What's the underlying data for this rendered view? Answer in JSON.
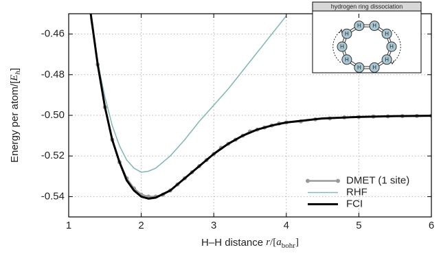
{
  "chart_data": {
    "type": "line",
    "x_label": [
      "H–H distance ",
      "r",
      "/[",
      "a",
      "bohr",
      "]"
    ],
    "y_label": [
      "Energy per atom/[",
      "E",
      "h",
      "]"
    ],
    "xlim": [
      1,
      6
    ],
    "xticks": [
      1,
      2,
      3,
      4,
      5,
      6
    ],
    "ylim": [
      -0.55,
      -0.45
    ],
    "yticks": [
      -0.54,
      -0.52,
      {
        "value": -0.5,
        "label": "-0.50"
      },
      -0.48,
      -0.46
    ],
    "grid": true,
    "legend": "lower right",
    "series": [
      {
        "name": "DMET (1 site)",
        "color": "#9a9a9a",
        "markers": true,
        "x": [
          1.3,
          1.4,
          1.5,
          1.6,
          1.7,
          1.8,
          1.9,
          2.0,
          2.1,
          2.2,
          2.3,
          2.4,
          2.5,
          2.6,
          2.7,
          2.8,
          2.9,
          3.0,
          3.1,
          3.2,
          3.3,
          3.4,
          3.5,
          3.6,
          3.7,
          3.8,
          3.9,
          4.0,
          4.2,
          4.4,
          4.6,
          4.8,
          5.0,
          5.2,
          5.4,
          5.6,
          5.8,
          6.0
        ],
        "values": [
          -0.449,
          -0.475,
          -0.496,
          -0.512,
          -0.523,
          -0.531,
          -0.536,
          -0.539,
          -0.54,
          -0.54,
          -0.539,
          -0.537,
          -0.534,
          -0.531,
          -0.528,
          -0.525,
          -0.522,
          -0.519,
          -0.516,
          -0.514,
          -0.512,
          -0.51,
          -0.508,
          -0.507,
          -0.506,
          -0.505,
          -0.504,
          -0.5035,
          -0.503,
          -0.502,
          -0.5015,
          -0.501,
          -0.5008,
          -0.5006,
          -0.5005,
          -0.5004,
          -0.5003,
          -0.5002
        ]
      },
      {
        "name": "RHF",
        "color": "#86b8b8",
        "markers": false,
        "x": [
          1.3,
          1.4,
          1.5,
          1.6,
          1.7,
          1.8,
          1.9,
          2.0,
          2.1,
          2.2,
          2.4,
          2.6,
          2.8,
          3.0,
          3.2,
          3.4,
          3.6,
          3.8,
          4.0
        ],
        "values": [
          -0.452,
          -0.474,
          -0.491,
          -0.505,
          -0.515,
          -0.522,
          -0.526,
          -0.528,
          -0.5275,
          -0.526,
          -0.52,
          -0.512,
          -0.503,
          -0.495,
          -0.487,
          -0.478,
          -0.469,
          -0.46,
          -0.451
        ]
      },
      {
        "name": "FCI",
        "color": "#000000",
        "markers": false,
        "x": [
          1.3,
          1.4,
          1.5,
          1.6,
          1.7,
          1.8,
          1.9,
          2.0,
          2.1,
          2.2,
          2.4,
          2.6,
          2.8,
          3.0,
          3.2,
          3.4,
          3.6,
          3.8,
          4.0,
          4.5,
          5.0,
          5.5,
          6.0
        ],
        "values": [
          -0.449,
          -0.475,
          -0.496,
          -0.512,
          -0.523,
          -0.532,
          -0.537,
          -0.54,
          -0.541,
          -0.5405,
          -0.537,
          -0.531,
          -0.525,
          -0.519,
          -0.514,
          -0.51,
          -0.507,
          -0.505,
          -0.5035,
          -0.5015,
          -0.5008,
          -0.5004,
          -0.5002
        ]
      }
    ],
    "inset": {
      "title": "hydrogen ring dissociation",
      "atoms": [
        "H",
        "H",
        "H",
        "H",
        "H",
        "H",
        "H",
        "H",
        "H",
        "H"
      ]
    }
  }
}
